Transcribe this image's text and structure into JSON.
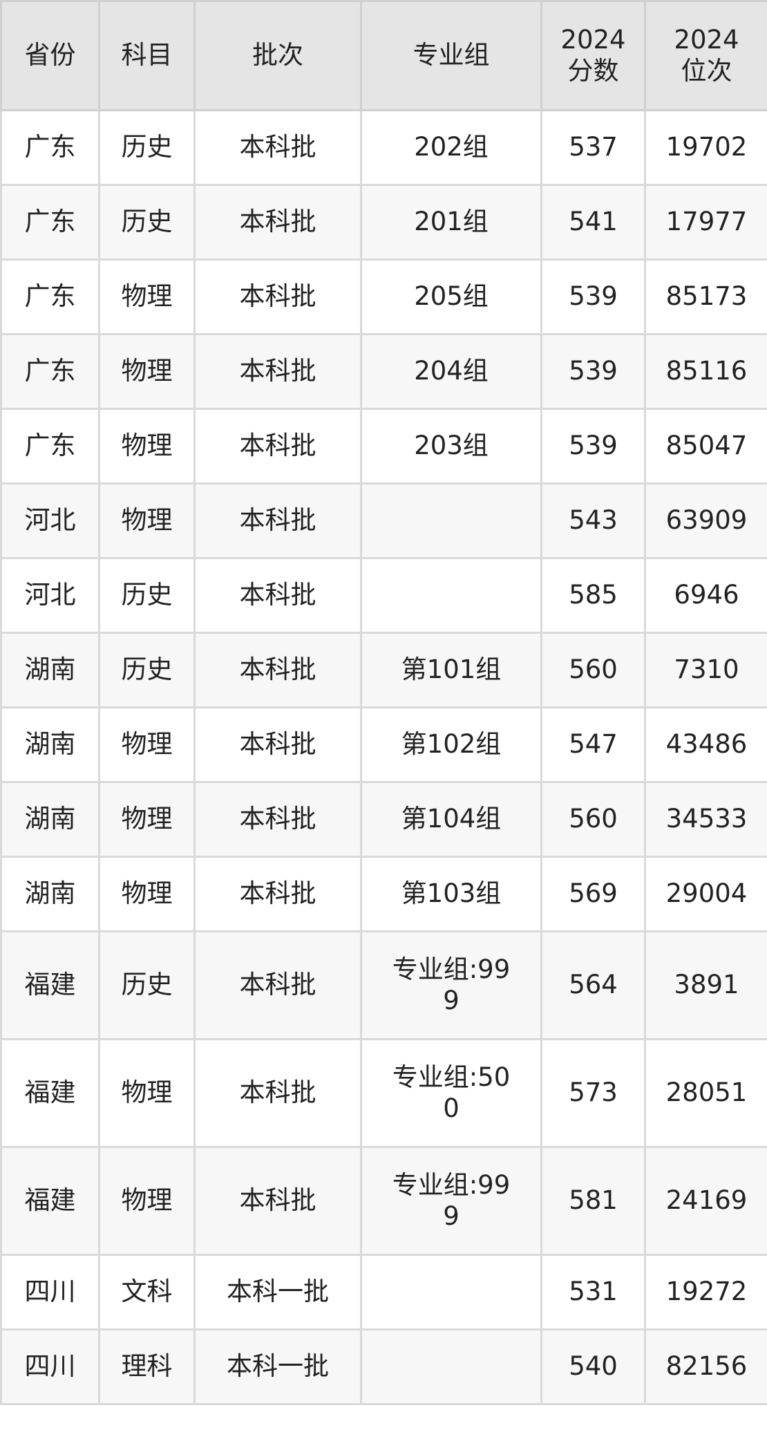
{
  "headers": [
    "省份",
    "科目",
    "批次",
    "专业组",
    "2024\n分数",
    "2024\n位次"
  ],
  "rows": [
    {
      "province": "广东",
      "subject": "历史",
      "batch": "本科批",
      "group": "202组",
      "score": "537",
      "rank": "19702"
    },
    {
      "province": "广东",
      "subject": "历史",
      "batch": "本科批",
      "group": "201组",
      "score": "541",
      "rank": "17977"
    },
    {
      "province": "广东",
      "subject": "物理",
      "batch": "本科批",
      "group": "205组",
      "score": "539",
      "rank": "85173"
    },
    {
      "province": "广东",
      "subject": "物理",
      "batch": "本科批",
      "group": "204组",
      "score": "539",
      "rank": "85116"
    },
    {
      "province": "广东",
      "subject": "物理",
      "batch": "本科批",
      "group": "203组",
      "score": "539",
      "rank": "85047"
    },
    {
      "province": "河北",
      "subject": "物理",
      "batch": "本科批",
      "group": "",
      "score": "543",
      "rank": "63909"
    },
    {
      "province": "河北",
      "subject": "历史",
      "batch": "本科批",
      "group": "",
      "score": "585",
      "rank": "6946"
    },
    {
      "province": "湖南",
      "subject": "历史",
      "batch": "本科批",
      "group": "第101组",
      "score": "560",
      "rank": "7310"
    },
    {
      "province": "湖南",
      "subject": "物理",
      "batch": "本科批",
      "group": "第102组",
      "score": "547",
      "rank": "43486"
    },
    {
      "province": "湖南",
      "subject": "物理",
      "batch": "本科批",
      "group": "第104组",
      "score": "560",
      "rank": "34533"
    },
    {
      "province": "湖南",
      "subject": "物理",
      "batch": "本科批",
      "group": "第103组",
      "score": "569",
      "rank": "29004"
    },
    {
      "province": "福建",
      "subject": "历史",
      "batch": "本科批",
      "group": "专业组:999",
      "score": "564",
      "rank": "3891"
    },
    {
      "province": "福建",
      "subject": "物理",
      "batch": "本科批",
      "group": "专业组:500",
      "score": "573",
      "rank": "28051"
    },
    {
      "province": "福建",
      "subject": "物理",
      "batch": "本科批",
      "group": "专业组:999",
      "score": "581",
      "rank": "24169"
    },
    {
      "province": "四川",
      "subject": "文科",
      "batch": "本科一批",
      "group": "",
      "score": "531",
      "rank": "19272"
    },
    {
      "province": "四川",
      "subject": "理科",
      "batch": "本科一批",
      "group": "",
      "score": "540",
      "rank": "82156"
    }
  ]
}
